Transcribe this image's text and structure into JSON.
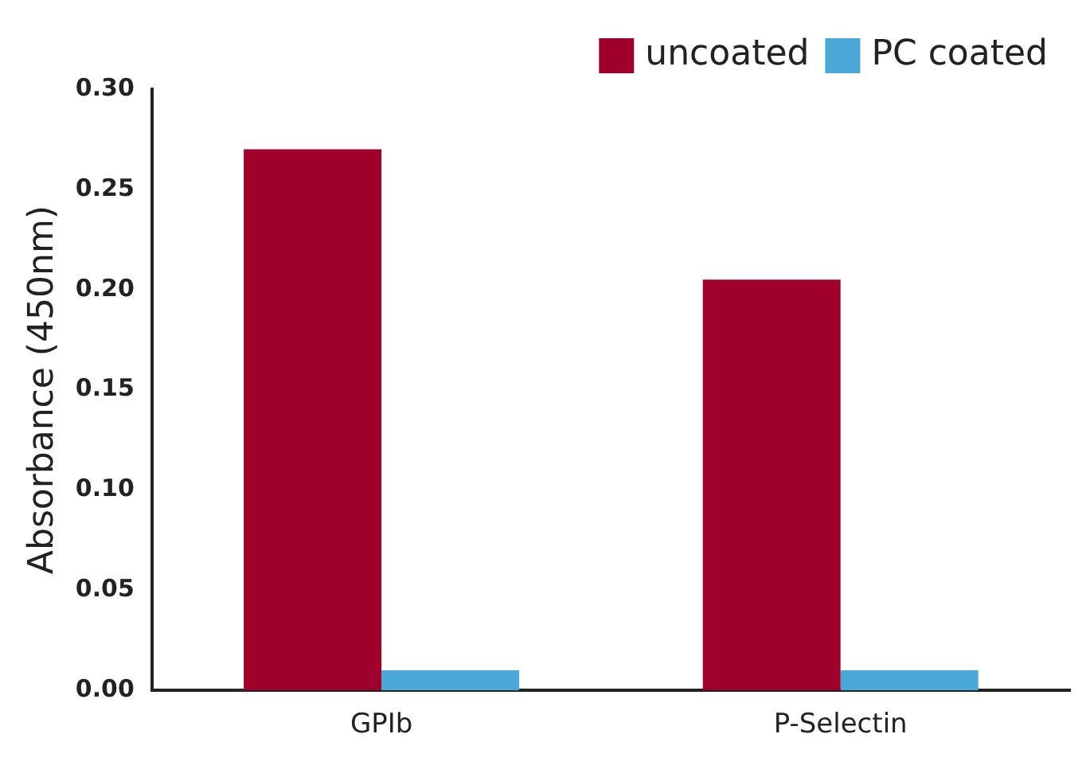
{
  "chart_data": {
    "type": "bar",
    "ylabel": "Absorbance (450nm)",
    "categories": [
      "GPIb",
      "P-Selectin"
    ],
    "series": [
      {
        "name": "uncoated",
        "color": "#a0002c",
        "values": [
          0.27,
          0.205
        ]
      },
      {
        "name": "PC coated",
        "color": "#4aa8d8",
        "values": [
          0.01,
          0.01
        ]
      }
    ],
    "ylim": [
      0,
      0.3
    ],
    "yticks": [
      {
        "value": 0,
        "label": "0.00"
      },
      {
        "value": 0.05,
        "label": "0.05"
      },
      {
        "value": 0.1,
        "label": "0.10"
      },
      {
        "value": 0.15,
        "label": "0.15"
      },
      {
        "value": 0.2,
        "label": "0.20"
      },
      {
        "value": 0.25,
        "label": "0.25"
      },
      {
        "value": 0.3,
        "label": "0.30"
      }
    ],
    "grid": false,
    "legend": "top right"
  }
}
